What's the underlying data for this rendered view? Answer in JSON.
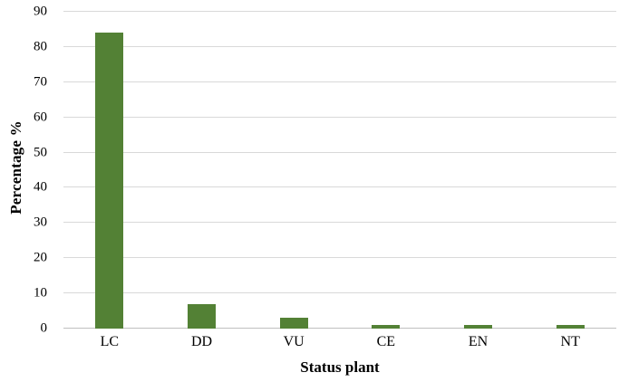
{
  "chart_data": {
    "type": "bar",
    "categories": [
      "LC",
      "DD",
      "VU",
      "CE",
      "EN",
      "NT"
    ],
    "values": [
      84,
      7,
      3,
      1,
      1,
      1
    ],
    "title": "",
    "xlabel": "Status plant",
    "ylabel": "Percentage %",
    "ylim": [
      0,
      90
    ],
    "ytick_step": 10,
    "ytick_labels": [
      "0",
      "10",
      "20",
      "30",
      "40",
      "50",
      "60",
      "70",
      "80",
      "90"
    ],
    "grid": true,
    "legend_position": "none",
    "colors": {
      "bar": "#538135",
      "gridline": "#d9d9d9",
      "axis_line": "#bfbfbf",
      "text": "#000000",
      "background": "#ffffff"
    }
  }
}
